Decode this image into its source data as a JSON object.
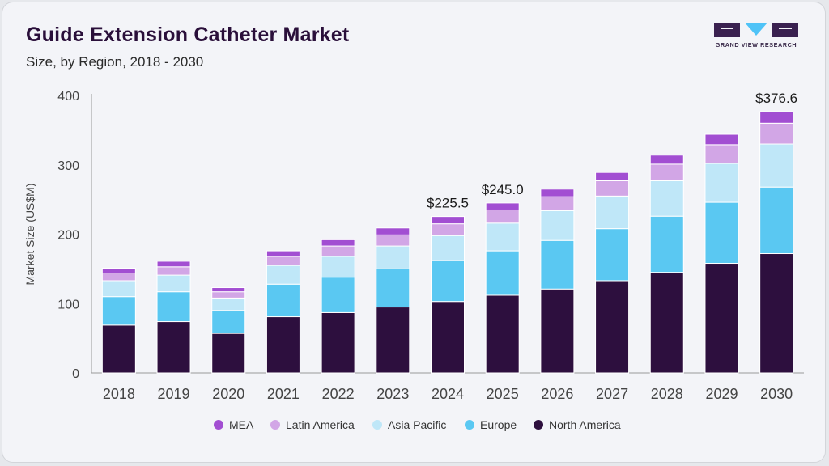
{
  "header": {
    "title": "Guide Extension Catheter Market",
    "subtitle": "Size, by Region, 2018 - 2030"
  },
  "logo": {
    "text": "GRAND VIEW RESEARCH",
    "color": "#3a2150",
    "accent": "#4fc3f7"
  },
  "chart_data": {
    "type": "bar",
    "stacked": true,
    "ylabel": "Market Size (US$M)",
    "xlabel": "",
    "ylim": [
      0,
      400
    ],
    "yticks": [
      0,
      100,
      200,
      300,
      400
    ],
    "categories": [
      "2018",
      "2019",
      "2020",
      "2021",
      "2022",
      "2023",
      "2024",
      "2025",
      "2026",
      "2027",
      "2028",
      "2029",
      "2030"
    ],
    "series": [
      {
        "name": "North America",
        "color": "#2d0f3e",
        "values": [
          69,
          74,
          57,
          81,
          87,
          95,
          103,
          112,
          121,
          133,
          145,
          158,
          172
        ]
      },
      {
        "name": "Europe",
        "color": "#5ac8f2",
        "values": [
          41,
          43,
          33,
          47,
          51,
          55,
          59,
          64,
          70,
          75,
          81,
          88,
          96
        ]
      },
      {
        "name": "Asia Pacific",
        "color": "#bfe7f8",
        "values": [
          23,
          24,
          18,
          27,
          30,
          33,
          36,
          40,
          43,
          47,
          51,
          56,
          62
        ]
      },
      {
        "name": "Latin America",
        "color": "#d2a6e6",
        "values": [
          11,
          12,
          9,
          13,
          15,
          16,
          17,
          19,
          20,
          22,
          24,
          27,
          30
        ]
      },
      {
        "name": "MEA",
        "color": "#a24ed2",
        "values": [
          7,
          8,
          6,
          8,
          9,
          10,
          10.5,
          10,
          11,
          12,
          13,
          15,
          16.6
        ]
      }
    ],
    "annotations": [
      {
        "category": "2024",
        "label": "$225.5"
      },
      {
        "category": "2025",
        "label": "$245.0"
      },
      {
        "category": "2030",
        "label": "$376.6"
      }
    ],
    "legend": {
      "position": "bottom",
      "order": [
        "MEA",
        "Latin America",
        "Asia Pacific",
        "Europe",
        "North America"
      ]
    },
    "grid": false
  }
}
